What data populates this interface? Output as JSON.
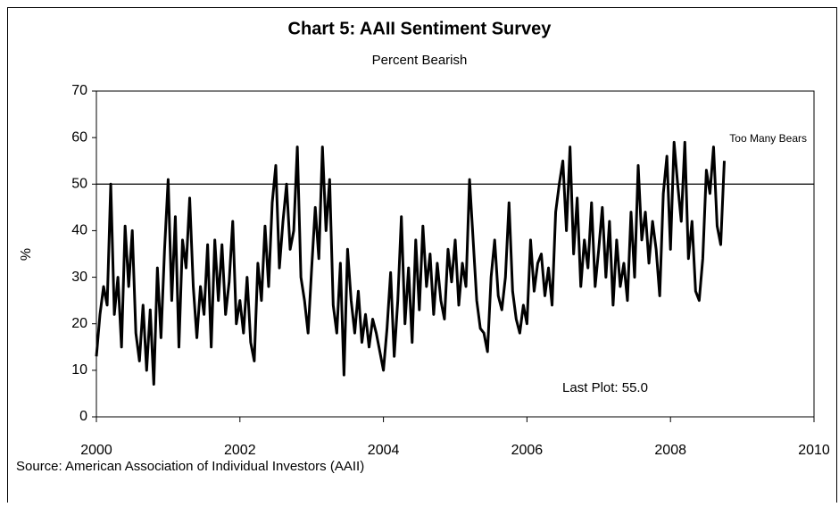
{
  "chart_data": {
    "type": "line",
    "title": "Chart 5: AAII Sentiment Survey",
    "subtitle": "Percent Bearish",
    "y_label": "%",
    "source": "Source: American Association of Individual Investors (AAII)",
    "annotations": [
      {
        "text": "Too Many Bears"
      },
      {
        "text": "Last Plot: 55.0"
      }
    ],
    "reference_line": 50,
    "xlim": [
      2000,
      2010
    ],
    "xticks": [
      2000,
      2002,
      2004,
      2006,
      2008,
      2010
    ],
    "ylim": [
      0,
      70
    ],
    "yticks": [
      0,
      10,
      20,
      30,
      40,
      50,
      60,
      70
    ],
    "series": [
      {
        "color": "#000000",
        "x": [
          2000.0,
          2000.05,
          2000.1,
          2000.15,
          2000.2,
          2000.25,
          2000.3,
          2000.35,
          2000.4,
          2000.45,
          2000.5,
          2000.55,
          2000.6,
          2000.65,
          2000.7,
          2000.75,
          2000.8,
          2000.85,
          2000.9,
          2000.95,
          2001.0,
          2001.05,
          2001.1,
          2001.15,
          2001.2,
          2001.25,
          2001.3,
          2001.35,
          2001.4,
          2001.45,
          2001.5,
          2001.55,
          2001.6,
          2001.65,
          2001.7,
          2001.75,
          2001.8,
          2001.85,
          2001.9,
          2001.95,
          2002.0,
          2002.05,
          2002.1,
          2002.15,
          2002.2,
          2002.25,
          2002.3,
          2002.35,
          2002.4,
          2002.45,
          2002.5,
          2002.55,
          2002.6,
          2002.65,
          2002.7,
          2002.75,
          2002.8,
          2002.85,
          2002.9,
          2002.95,
          2003.0,
          2003.05,
          2003.1,
          2003.15,
          2003.2,
          2003.25,
          2003.3,
          2003.35,
          2003.4,
          2003.45,
          2003.5,
          2003.55,
          2003.6,
          2003.65,
          2003.7,
          2003.75,
          2003.8,
          2003.85,
          2003.9,
          2003.95,
          2004.0,
          2004.05,
          2004.1,
          2004.15,
          2004.2,
          2004.25,
          2004.3,
          2004.35,
          2004.4,
          2004.45,
          2004.5,
          2004.55,
          2004.6,
          2004.65,
          2004.7,
          2004.75,
          2004.8,
          2004.85,
          2004.9,
          2004.95,
          2005.0,
          2005.05,
          2005.1,
          2005.15,
          2005.2,
          2005.25,
          2005.3,
          2005.35,
          2005.4,
          2005.45,
          2005.5,
          2005.55,
          2005.6,
          2005.65,
          2005.7,
          2005.75,
          2005.8,
          2005.85,
          2005.9,
          2005.95,
          2006.0,
          2006.05,
          2006.1,
          2006.15,
          2006.2,
          2006.25,
          2006.3,
          2006.35,
          2006.4,
          2006.45,
          2006.5,
          2006.55,
          2006.6,
          2006.65,
          2006.7,
          2006.75,
          2006.8,
          2006.85,
          2006.9,
          2006.95,
          2007.0,
          2007.05,
          2007.1,
          2007.15,
          2007.2,
          2007.25,
          2007.3,
          2007.35,
          2007.4,
          2007.45,
          2007.5,
          2007.55,
          2007.6,
          2007.65,
          2007.7,
          2007.75,
          2007.8,
          2007.85,
          2007.9,
          2007.95,
          2008.0,
          2008.05,
          2008.1,
          2008.15,
          2008.2,
          2008.25,
          2008.3,
          2008.35,
          2008.4,
          2008.45,
          2008.5,
          2008.55,
          2008.6,
          2008.65,
          2008.7,
          2008.75
        ],
        "values": [
          13,
          22,
          28,
          24,
          50,
          22,
          30,
          15,
          41,
          28,
          40,
          18,
          12,
          24,
          10,
          23,
          7,
          32,
          17,
          36,
          51,
          25,
          43,
          15,
          38,
          32,
          47,
          28,
          17,
          28,
          22,
          37,
          15,
          38,
          25,
          37,
          22,
          29,
          42,
          20,
          25,
          18,
          30,
          16,
          12,
          33,
          25,
          41,
          28,
          46,
          54,
          32,
          42,
          50,
          36,
          40,
          58,
          30,
          25,
          18,
          32,
          45,
          34,
          58,
          40,
          51,
          24,
          18,
          33,
          9,
          36,
          25,
          18,
          27,
          16,
          22,
          15,
          21,
          18,
          14,
          10,
          19,
          31,
          13,
          25,
          43,
          20,
          32,
          16,
          38,
          23,
          41,
          28,
          35,
          22,
          33,
          25,
          21,
          36,
          29,
          38,
          24,
          33,
          28,
          51,
          38,
          25,
          19,
          18,
          14,
          30,
          38,
          26,
          23,
          30,
          46,
          27,
          21,
          18,
          24,
          20,
          38,
          27,
          33,
          35,
          26,
          32,
          24,
          44,
          50,
          55,
          40,
          58,
          35,
          47,
          28,
          38,
          32,
          46,
          28,
          36,
          45,
          30,
          42,
          24,
          38,
          28,
          33,
          25,
          44,
          30,
          54,
          38,
          44,
          33,
          42,
          36,
          26,
          48,
          56,
          36,
          59,
          50,
          42,
          59,
          34,
          42,
          27,
          25,
          34,
          53,
          48,
          58,
          41,
          37,
          55
        ]
      }
    ]
  }
}
